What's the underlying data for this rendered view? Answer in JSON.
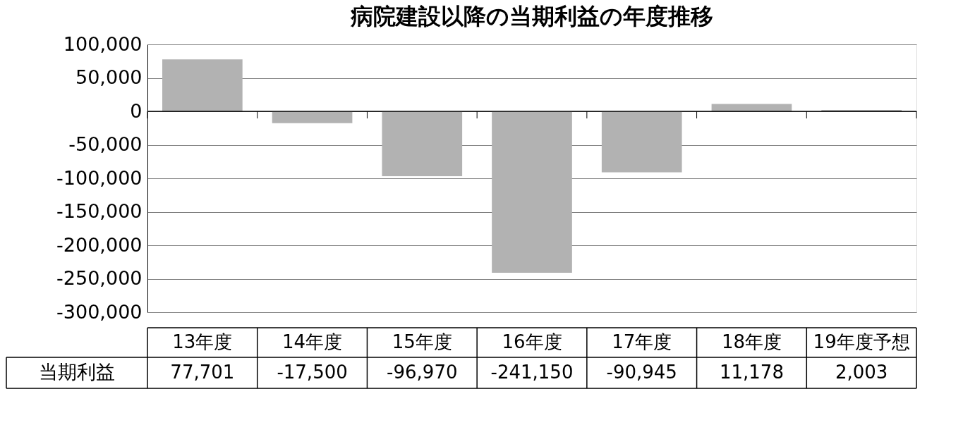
{
  "chart_data": {
    "type": "bar",
    "title": "病院建設以降の当期利益の年度推移",
    "categories": [
      "13年度",
      "14年度",
      "15年度",
      "16年度",
      "17年度",
      "18年度",
      "19年度予想"
    ],
    "series": [
      {
        "name": "当期利益",
        "color": "#b2b2b2",
        "values": [
          77701,
          -17500,
          -96970,
          -241150,
          -90945,
          11178,
          2003
        ],
        "value_labels": [
          "77,701",
          "-17,500",
          "-96,970",
          "-241,150",
          "-90,945",
          "11,178",
          "2,003"
        ]
      }
    ],
    "ylim": [
      -300000,
      100000
    ],
    "yticks": [
      {
        "value": 100000,
        "label": "100,000"
      },
      {
        "value": 50000,
        "label": "50,000"
      },
      {
        "value": 0,
        "label": "0"
      },
      {
        "value": -50000,
        "label": "-50,000"
      },
      {
        "value": -100000,
        "label": "-100,000"
      },
      {
        "value": -150000,
        "label": "-150,000"
      },
      {
        "value": -200000,
        "label": "-200,000"
      },
      {
        "value": -250000,
        "label": "-250,000"
      },
      {
        "value": -300000,
        "label": "-300,000"
      }
    ],
    "grid": "y"
  }
}
